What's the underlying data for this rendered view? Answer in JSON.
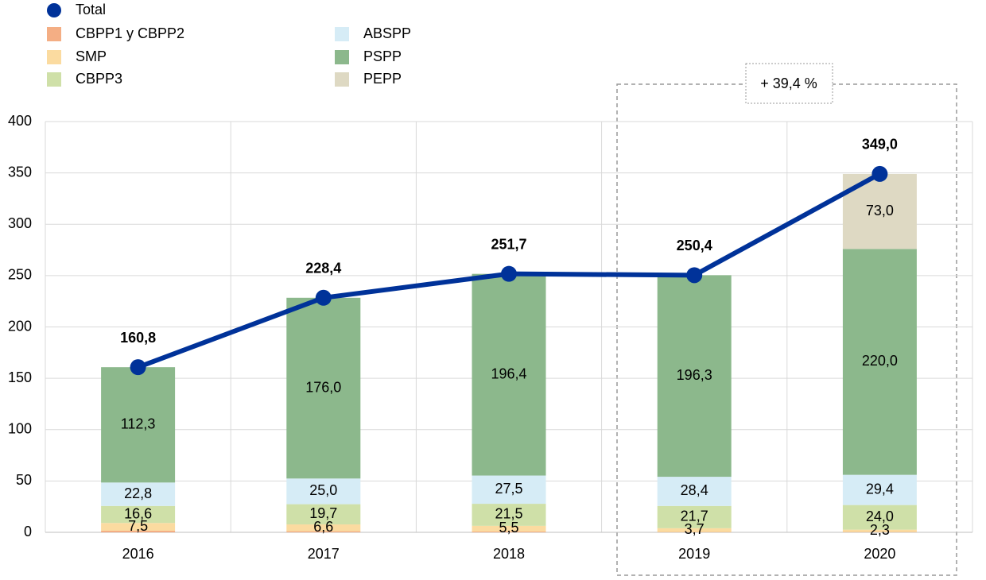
{
  "chart_data": {
    "type": "bar",
    "stacked": true,
    "categories": [
      "2016",
      "2017",
      "2018",
      "2019",
      "2020"
    ],
    "ylim": [
      0,
      400
    ],
    "yticks": [
      0,
      50,
      100,
      150,
      200,
      250,
      300,
      350,
      400
    ],
    "grid": true,
    "annotation": "+ 39,4 %",
    "annotation_color": "#e00000",
    "series": [
      {
        "name": "Total",
        "type": "line",
        "color": "#003299",
        "values": [
          160.8,
          228.4,
          251.7,
          250.4,
          349.0
        ],
        "value_labels": [
          "160,8",
          "228,4",
          "251,7",
          "250,4",
          "349,0"
        ]
      },
      {
        "name": "CBPP1 y CBPP2",
        "color": "#f4ae84",
        "values": [
          1.6,
          1.1,
          0.8,
          0.3,
          0.3
        ]
      },
      {
        "name": "SMP",
        "color": "#fbdba0",
        "label_color": "#000000",
        "values": [
          7.5,
          6.6,
          5.5,
          3.7,
          2.3
        ],
        "value_labels": [
          "7,5",
          "6,6",
          "5,5",
          "3,7",
          "2,3"
        ]
      },
      {
        "name": "CBPP3",
        "color": "#cfe0a8",
        "label_color": "#000000",
        "values": [
          16.6,
          19.7,
          21.5,
          21.7,
          24.0
        ],
        "value_labels": [
          "16,6",
          "19,7",
          "21,5",
          "21,7",
          "24,0"
        ]
      },
      {
        "name": "ABSPP",
        "color": "#d6ecf6",
        "label_color": "#000000",
        "values": [
          22.8,
          25.0,
          27.5,
          28.4,
          29.4
        ],
        "value_labels": [
          "22,8",
          "25,0",
          "27,5",
          "28,4",
          "29,4"
        ]
      },
      {
        "name": "PSPP",
        "color": "#8cb88c",
        "label_color": "#ffffff",
        "values": [
          112.3,
          176.0,
          196.4,
          196.3,
          220.0
        ],
        "value_labels": [
          "112,3",
          "176,0",
          "196,4",
          "196,3",
          "220,0"
        ]
      },
      {
        "name": "PEPP",
        "color": "#ded9c3",
        "label_color": "#000000",
        "values": [
          null,
          null,
          null,
          null,
          73.0
        ],
        "value_labels": [
          null,
          null,
          null,
          null,
          "73,0"
        ]
      }
    ]
  }
}
